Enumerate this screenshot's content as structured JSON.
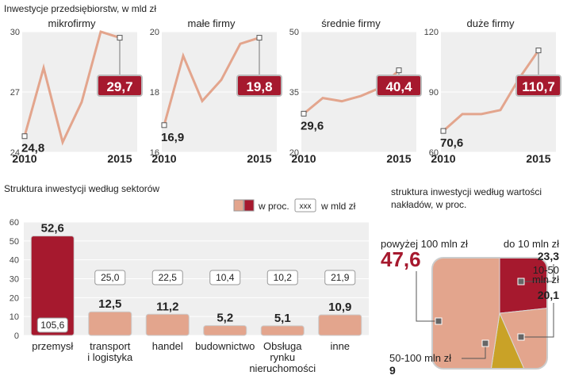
{
  "header": {
    "title": "Inwestycje przedsiębiorstw, w mld zł"
  },
  "chart_data": [
    {
      "type": "line",
      "title": "mikrofirmy",
      "x": [
        2010,
        2011,
        2012,
        2013,
        2014,
        2015
      ],
      "xlim": [
        2010,
        2015
      ],
      "xticks": [
        2010,
        2015
      ],
      "ylim": [
        24,
        30
      ],
      "yticks": [
        24,
        27,
        30
      ],
      "series": [
        {
          "color": "#e3a58d",
          "values": [
            24.8,
            28.2,
            24.5,
            26.5,
            30,
            29.7
          ],
          "value_labels": [
            "24,8",
            null,
            null,
            null,
            null,
            "29,7"
          ]
        }
      ]
    },
    {
      "type": "line",
      "title": "małe firmy",
      "x": [
        2010,
        2011,
        2012,
        2013,
        2014,
        2015
      ],
      "xlim": [
        2010,
        2015
      ],
      "xticks": [
        2010,
        2015
      ],
      "ylim": [
        16,
        20
      ],
      "yticks": [
        16,
        18,
        20
      ],
      "series": [
        {
          "color": "#e3a58d",
          "values": [
            16.9,
            19.2,
            17.7,
            18.4,
            19.6,
            19.8
          ],
          "value_labels": [
            "16,9",
            null,
            null,
            null,
            null,
            "19,8"
          ]
        }
      ]
    },
    {
      "type": "line",
      "title": "średnie firmy",
      "x": [
        2010,
        2011,
        2012,
        2013,
        2014,
        2015
      ],
      "xlim": [
        2010,
        2015
      ],
      "xticks": [
        2010,
        2015
      ],
      "ylim": [
        20,
        50
      ],
      "yticks": [
        20,
        35,
        50
      ],
      "series": [
        {
          "color": "#e3a58d",
          "values": [
            29.6,
            33.5,
            32.7,
            34,
            36,
            40.4
          ],
          "value_labels": [
            "29,6",
            null,
            null,
            null,
            null,
            "40,4"
          ]
        }
      ]
    },
    {
      "type": "line",
      "title": "duże firmy",
      "x": [
        2010,
        2011,
        2012,
        2013,
        2014,
        2015
      ],
      "xlim": [
        2010,
        2015
      ],
      "xticks": [
        2010,
        2015
      ],
      "ylim": [
        60,
        120
      ],
      "yticks": [
        60,
        90,
        120
      ],
      "series": [
        {
          "color": "#e3a58d",
          "values": [
            70.6,
            79,
            79,
            81,
            97,
            110.7
          ],
          "value_labels": [
            "70,6",
            null,
            null,
            null,
            null,
            "110,7"
          ]
        }
      ]
    },
    {
      "type": "bar",
      "title": "Struktura inwestycji według sektorów",
      "categories": [
        "przemysł",
        "transport\ni logistyka",
        "handel",
        "budownictwo",
        "Obsługa\nrynku\nnieruchomości",
        "inne"
      ],
      "ylim": [
        0,
        60
      ],
      "yticks": [
        0,
        10,
        20,
        30,
        40,
        50,
        60
      ],
      "grid": true,
      "series": [
        {
          "name": "w proc.",
          "colors": [
            "#a6192e",
            "#e3a58d",
            "#e3a58d",
            "#e3a58d",
            "#e3a58d",
            "#e3a58d"
          ],
          "values": [
            52.6,
            12.5,
            11.2,
            5.2,
            5.1,
            10.9
          ],
          "value_labels": [
            "52,6",
            "12,5",
            "11,2",
            "5,2",
            "5,1",
            "10,9"
          ]
        },
        {
          "name": "w mld zł",
          "legend_sample": "xxx",
          "values": [
            105.6,
            25.0,
            22.5,
            10.4,
            10.2,
            21.9
          ],
          "value_labels": [
            "105,6",
            "25,0",
            "22,5",
            "10,4",
            "10,2",
            "21,9"
          ]
        }
      ]
    },
    {
      "type": "pie",
      "title": "struktura inwestycji według wartości\nnakładów, w proc.",
      "categories": [
        "do 10 mln zł",
        "10-50\nmln zł",
        "50-100 mln zł",
        "powyżej 100 mln zł"
      ],
      "values": [
        23.3,
        20.1,
        9,
        47.6
      ],
      "value_labels": [
        "23,3",
        "20,1",
        "9",
        "47,6"
      ],
      "colors": [
        "#a6192e",
        "#e3a58d",
        "#c9a227",
        "#e3a58d"
      ]
    }
  ]
}
